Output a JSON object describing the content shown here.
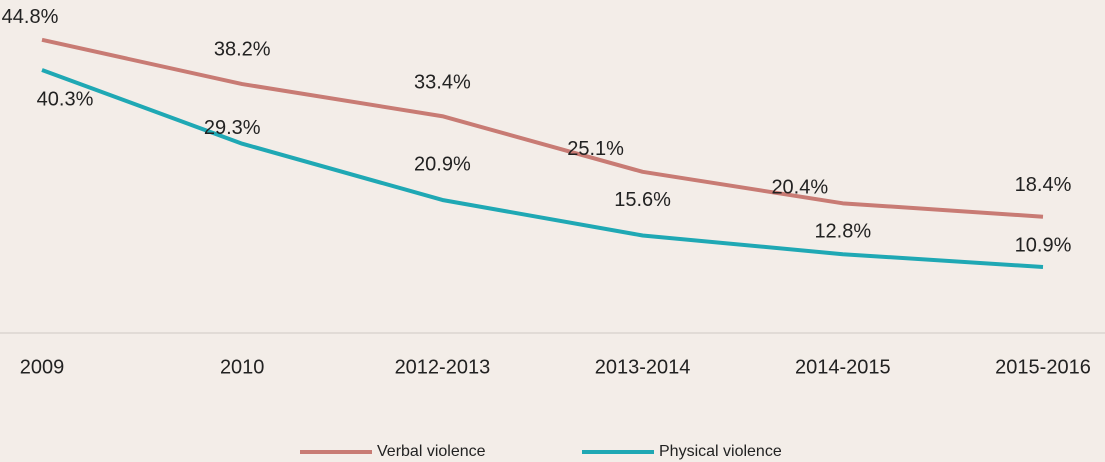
{
  "chart_data": {
    "type": "line",
    "categories": [
      "2009",
      "2010",
      "2012-2013",
      "2013-2014",
      "2014-2015",
      "2015-2016"
    ],
    "series": [
      {
        "name": "Verbal violence",
        "color": "#c87b74",
        "values": [
          44.8,
          38.2,
          33.4,
          25.1,
          20.4,
          18.4
        ],
        "value_labels": [
          "44.8%",
          "38.2%",
          "33.4%",
          "25.1%",
          "20.4%",
          "18.4%"
        ]
      },
      {
        "name": "Physical violence",
        "color": "#1fa8b4",
        "values": [
          40.3,
          29.3,
          20.9,
          15.6,
          12.8,
          10.9
        ],
        "value_labels": [
          "40.3%",
          "29.3%",
          "20.9%",
          "15.6%",
          "12.8%",
          "10.9%"
        ]
      }
    ],
    "ylim": [
      0,
      50
    ],
    "legend": "bottom"
  }
}
